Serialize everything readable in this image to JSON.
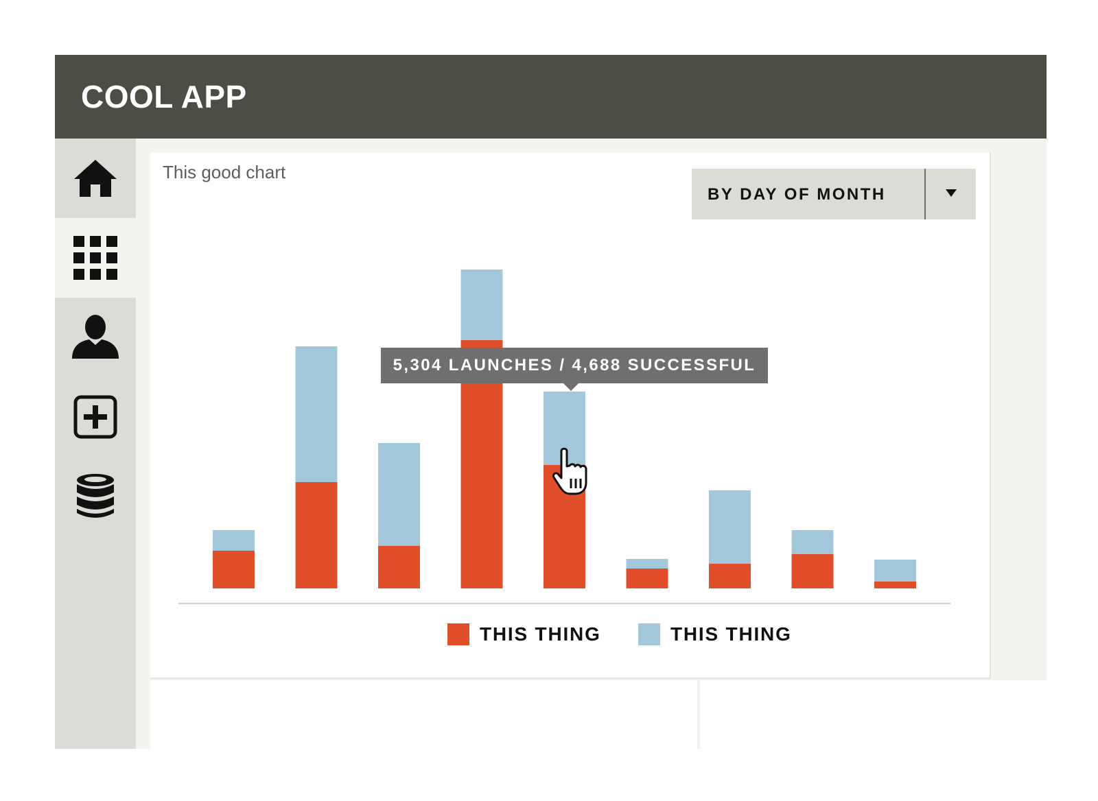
{
  "app": {
    "title": "COOL APP"
  },
  "sidebar": {
    "items": [
      {
        "name": "home",
        "icon": "home-icon",
        "active": false
      },
      {
        "name": "dashboard",
        "icon": "grid-icon",
        "active": true
      },
      {
        "name": "users",
        "icon": "user-icon",
        "active": false
      },
      {
        "name": "add",
        "icon": "plus-box-icon",
        "active": false
      },
      {
        "name": "database",
        "icon": "database-icon",
        "active": false
      }
    ]
  },
  "card": {
    "title": "This good chart",
    "dropdown": {
      "selected": "BY DAY OF MONTH",
      "icon": "caret-down-icon"
    },
    "tooltip": "5,304 LAUNCHES / 4,688 SUCCESSFUL"
  },
  "colors": {
    "header_bg": "#4c4d45",
    "series_a": "#e04f2a",
    "series_b": "#a3c8dc",
    "sidebar_bg": "#dcdcd7"
  },
  "chart_data": {
    "type": "bar",
    "stacked": true,
    "categories": [
      "",
      "",
      "",
      "",
      "",
      "",
      "",
      "",
      ""
    ],
    "series": [
      {
        "name": "THIS THING",
        "color": "#e04f2a",
        "values": [
          55,
          155,
          62,
          362,
          180,
          29,
          36,
          50,
          10
        ]
      },
      {
        "name": "THIS THING",
        "color": "#a3c8dc",
        "values": [
          30,
          198,
          150,
          103,
          107,
          14,
          107,
          35,
          32
        ]
      }
    ],
    "ylim": [
      0,
      480
    ],
    "legend": "bottom",
    "grid": false,
    "xlabel": "",
    "ylabel": ""
  }
}
